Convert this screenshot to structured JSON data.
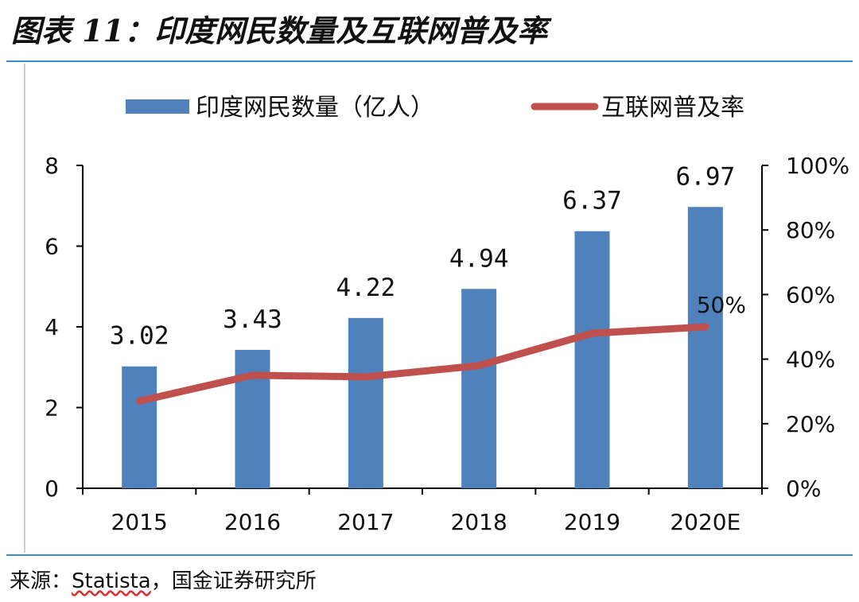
{
  "title": "图表 11：印度网民数量及互联网普及率",
  "source": {
    "prefix": "来源：",
    "name": "Statista",
    "suffix": "，国金证券研究所"
  },
  "colors": {
    "bar": "#4f81bd",
    "line": "#c0504d",
    "rule": "#3b8fd1"
  },
  "chart_data": {
    "type": "bar",
    "categories": [
      "2015",
      "2016",
      "2017",
      "2018",
      "2019",
      "2020E"
    ],
    "series": [
      {
        "name": "印度网民数量（亿人）",
        "type": "bar",
        "axis": "left",
        "values": [
          3.02,
          3.43,
          4.22,
          4.94,
          6.37,
          6.97
        ],
        "labels": [
          "3.02",
          "3.43",
          "4.22",
          "4.94",
          "6.37",
          "6.97"
        ]
      },
      {
        "name": "互联网普及率",
        "type": "line",
        "axis": "right",
        "values": [
          0.27,
          0.35,
          0.345,
          0.38,
          0.48,
          0.5
        ],
        "labels": [
          "",
          "",
          "",
          "",
          "",
          "50%"
        ]
      }
    ],
    "y_left": {
      "min": 0,
      "max": 8,
      "ticks": [
        "0",
        "2",
        "4",
        "6",
        "8"
      ]
    },
    "y_right": {
      "min": 0,
      "max": 1,
      "ticks": [
        "0%",
        "20%",
        "40%",
        "60%",
        "80%",
        "100%"
      ]
    },
    "legend_position": "top"
  }
}
